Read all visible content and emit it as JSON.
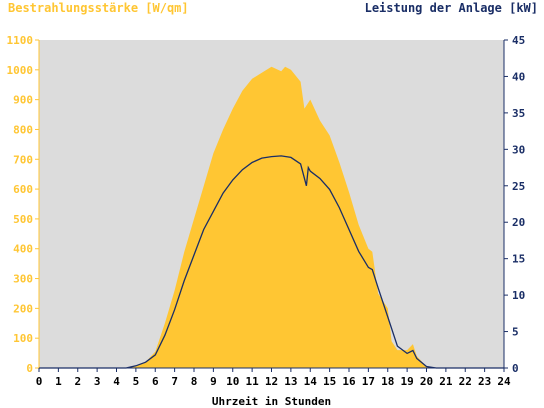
{
  "chart_data": {
    "type": "area",
    "title_left": "Bestrahlungsstärke [W/qm]",
    "title_right": "Leistung der Anlage [kW]",
    "xlabel": "Uhrzeit in Stunden",
    "xlim": [
      0,
      24
    ],
    "ylim_left": [
      0,
      1100
    ],
    "ylim_right": [
      0,
      45
    ],
    "x_ticks": [
      "0",
      "1",
      "2",
      "3",
      "4",
      "5",
      "6",
      "7",
      "8",
      "9",
      "10",
      "11",
      "12",
      "13",
      "14",
      "15",
      "16",
      "17",
      "18",
      "19",
      "20",
      "21",
      "22",
      "23",
      "24"
    ],
    "y_left_ticks": [
      "0",
      "100",
      "200",
      "300",
      "400",
      "500",
      "600",
      "700",
      "800",
      "900",
      "1000",
      "1100"
    ],
    "y_right_ticks": [
      "0",
      "5",
      "10",
      "15",
      "20",
      "25",
      "30",
      "35",
      "40",
      "45"
    ],
    "grid": false,
    "colors": {
      "irradiance": "#ffc633",
      "power": "#1a2e66",
      "plot_bg": "#dcdcdc"
    },
    "series": [
      {
        "name": "Bestrahlungsstärke",
        "axis": "left",
        "type": "area",
        "x": [
          0,
          4.5,
          5,
          5.5,
          6,
          6.5,
          7,
          7.5,
          8,
          8.5,
          9,
          9.5,
          10,
          10.5,
          11,
          11.5,
          12,
          12.5,
          12.7,
          13,
          13.5,
          13.7,
          13.8,
          14,
          14.5,
          15,
          15.5,
          16,
          16.5,
          17,
          17.2,
          17.5,
          18,
          18.2,
          18.5,
          19,
          19.3,
          19.5,
          20,
          20.5,
          24
        ],
        "values": [
          0,
          0,
          5,
          20,
          55,
          150,
          260,
          390,
          500,
          610,
          720,
          800,
          870,
          930,
          970,
          990,
          1010,
          995,
          1010,
          1000,
          960,
          870,
          880,
          900,
          830,
          780,
          690,
          590,
          480,
          400,
          390,
          250,
          200,
          90,
          60,
          60,
          80,
          40,
          5,
          0,
          0
        ]
      },
      {
        "name": "Leistung der Anlage",
        "axis": "right",
        "type": "line",
        "x": [
          0,
          4.5,
          5,
          5.5,
          6,
          6.5,
          7,
          7.5,
          8,
          8.5,
          9,
          9.5,
          10,
          10.5,
          11,
          11.5,
          12,
          12.5,
          13,
          13.5,
          13.8,
          13.9,
          14,
          14.5,
          15,
          15.5,
          16,
          16.5,
          17,
          17.2,
          17.5,
          18,
          18.5,
          19,
          19.3,
          19.5,
          20,
          20.5,
          24
        ],
        "values": [
          0,
          0,
          0.3,
          0.8,
          1.8,
          4.5,
          8,
          12,
          15.5,
          19,
          21.5,
          24,
          25.8,
          27.2,
          28.2,
          28.8,
          29.0,
          29.1,
          28.9,
          28,
          25,
          27.5,
          27,
          26,
          24.5,
          22,
          19,
          16,
          13.8,
          13.5,
          11,
          7,
          3,
          2,
          2.4,
          1.3,
          0.2,
          0,
          0
        ]
      }
    ]
  }
}
